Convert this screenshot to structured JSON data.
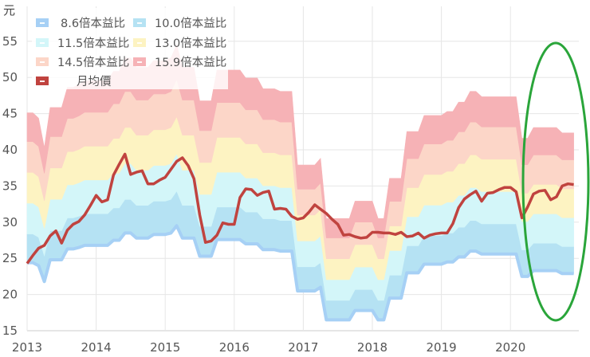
{
  "chart_data": {
    "type": "area",
    "y_unit_label": "元",
    "ylim": [
      15,
      57
    ],
    "y_ticks": [
      15,
      20,
      25,
      30,
      35,
      40,
      45,
      50,
      55
    ],
    "x_ticks": [
      "2013",
      "2014",
      "2015",
      "2016",
      "2017",
      "2018",
      "2019",
      "2020"
    ],
    "x_start": "2013-01",
    "x_end": "2020-12",
    "x_frequency": "monthly",
    "grid": true,
    "legend_position": "top-left",
    "pe_bands": {
      "series": [
        {
          "name": "8.6倍本益比",
          "multiple": 8.6,
          "color": "#a6d0f5"
        },
        {
          "name": "10.0倍本益比",
          "multiple": 10.0,
          "color": "#b5e2f3"
        },
        {
          "name": "11.5倍本益比",
          "multiple": 11.5,
          "color": "#d3f6f9"
        },
        {
          "name": "13.0倍本益比",
          "multiple": 13.0,
          "color": "#fdf3c2"
        },
        {
          "name": "14.5倍本益比",
          "multiple": 14.5,
          "color": "#fcd6c8"
        },
        {
          "name": "15.9倍本益比",
          "multiple": 15.9,
          "color": "#f6b2b6"
        }
      ],
      "values_at_8_6x": [
        24.4,
        24.4,
        24.0,
        21.8,
        24.8,
        24.8,
        24.8,
        26.3,
        26.3,
        26.5,
        26.8,
        26.8,
        26.8,
        26.8,
        26.8,
        27.5,
        27.5,
        28.5,
        28.5,
        27.8,
        27.8,
        27.8,
        28.3,
        28.3,
        28.3,
        28.5,
        29.5,
        27.8,
        27.8,
        27.8,
        25.3,
        25.3,
        25.3,
        27.6,
        27.6,
        27.6,
        27.6,
        27.6,
        27.0,
        27.0,
        27.0,
        26.2,
        26.2,
        26.2,
        26.0,
        26.0,
        26.0,
        20.5,
        20.5,
        20.5,
        20.5,
        21.0,
        16.5,
        16.5,
        16.5,
        16.5,
        16.5,
        17.8,
        17.8,
        17.8,
        17.8,
        16.5,
        16.5,
        19.5,
        19.5,
        19.5,
        23.0,
        23.0,
        23.0,
        24.2,
        24.2,
        24.2,
        24.2,
        24.5,
        24.5,
        25.2,
        25.2,
        26.0,
        26.0,
        25.6,
        25.6,
        25.6,
        25.6,
        25.6,
        25.6,
        25.6,
        22.5,
        22.5,
        23.3,
        23.3,
        23.3,
        23.3,
        23.3,
        22.9,
        22.9,
        22.9
      ]
    },
    "price_series": {
      "name": "月均價",
      "color": "#c0433f",
      "values": [
        24.3,
        25.4,
        26.4,
        26.8,
        28.1,
        28.8,
        27.1,
        28.9,
        29.7,
        30.1,
        31.0,
        32.3,
        33.7,
        32.8,
        33.1,
        36.5,
        38.0,
        39.4,
        36.6,
        36.9,
        37.1,
        35.3,
        35.3,
        35.8,
        36.2,
        37.3,
        38.4,
        38.9,
        37.8,
        36.0,
        31.0,
        27.2,
        27.4,
        28.2,
        29.9,
        29.7,
        29.7,
        33.4,
        34.6,
        34.5,
        33.7,
        34.1,
        34.3,
        31.8,
        31.9,
        31.8,
        30.8,
        30.4,
        30.6,
        31.4,
        32.4,
        31.8,
        31.2,
        30.4,
        29.7,
        28.2,
        28.3,
        28.0,
        27.8,
        27.9,
        28.6,
        28.6,
        28.5,
        28.5,
        28.3,
        28.6,
        28.0,
        28.1,
        28.5,
        27.8,
        28.2,
        28.4,
        28.5,
        28.5,
        29.8,
        32.0,
        33.2,
        33.8,
        34.3,
        32.9,
        34.0,
        34.1,
        34.5,
        34.8,
        34.8,
        34.2,
        30.6,
        32.1,
        33.9,
        34.3,
        34.4,
        33.1,
        33.5,
        35.0,
        35.3,
        35.2
      ]
    },
    "annotation": {
      "shape": "ellipse",
      "color": "#2aa53a",
      "highlights": "2020-03 to 2020-12"
    }
  }
}
